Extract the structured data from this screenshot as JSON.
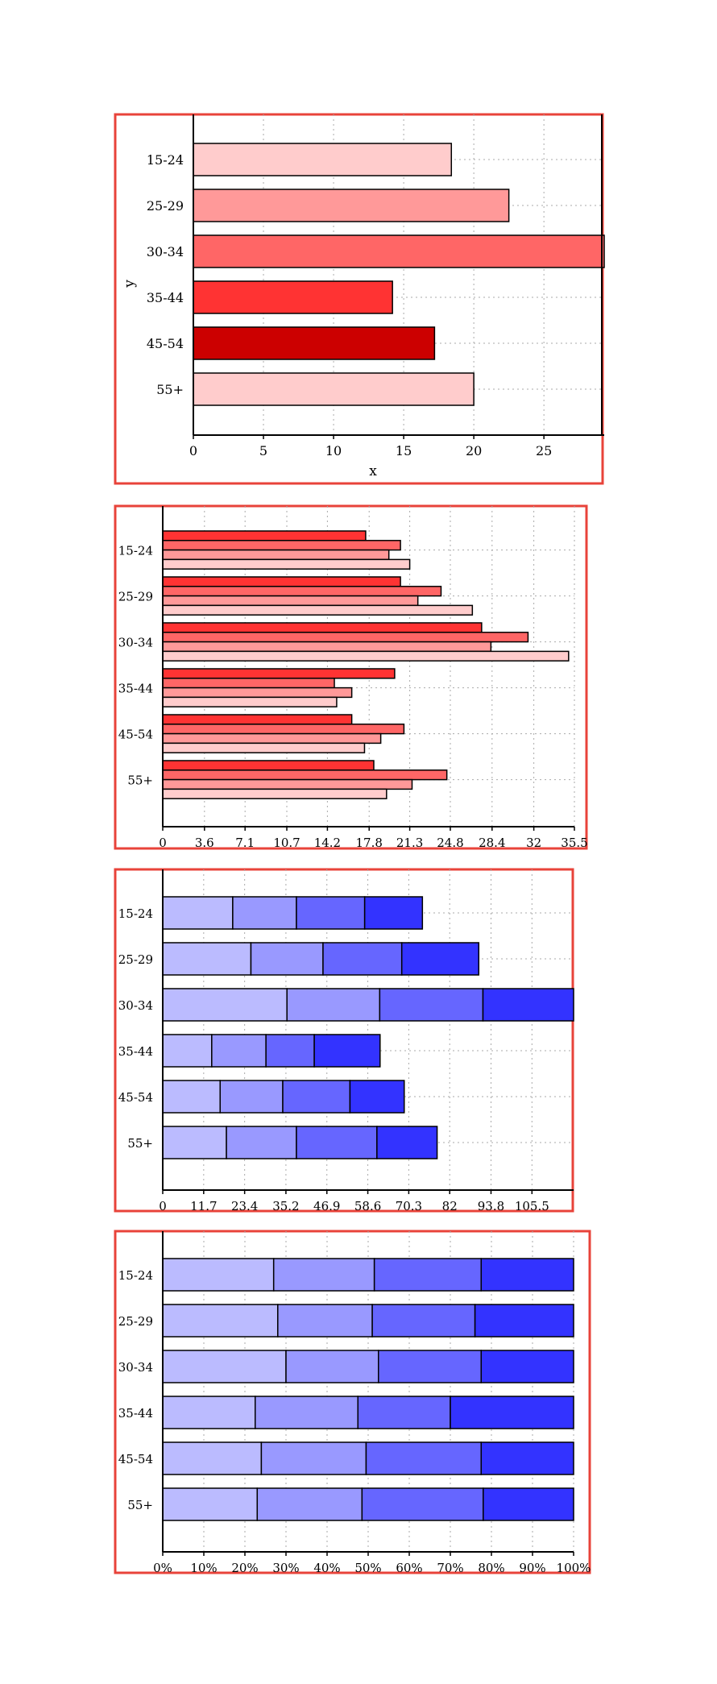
{
  "chart_data": [
    {
      "type": "bar",
      "orientation": "horizontal",
      "categories": [
        "15-24",
        "25-29",
        "30-34",
        "35-44",
        "45-54",
        "55+"
      ],
      "values": [
        18.4,
        22.5,
        29.3,
        14.2,
        17.2,
        20.0
      ],
      "colors": [
        "#ffcccc",
        "#ff9999",
        "#ff6666",
        "#ff3333",
        "#cc0000",
        "#ffcccc"
      ],
      "xlabel": "x",
      "ylabel": "y",
      "xlim": [
        0,
        29.3
      ],
      "xticks": [
        "0",
        "5",
        "10",
        "15",
        "20",
        "25"
      ],
      "grid": true
    },
    {
      "type": "bar",
      "orientation": "horizontal",
      "grouped": true,
      "categories": [
        "15-24",
        "25-29",
        "30-34",
        "35-44",
        "45-54",
        "55+"
      ],
      "series": [
        {
          "values": [
            17.5,
            20.5,
            27.5,
            20.0,
            16.3,
            18.2
          ],
          "color": "#ff3333"
        },
        {
          "values": [
            20.5,
            24.0,
            31.5,
            14.8,
            20.8,
            24.5
          ],
          "color": "#ff6666"
        },
        {
          "values": [
            19.5,
            22.0,
            28.3,
            16.3,
            18.8,
            21.5
          ],
          "color": "#ff9999"
        },
        {
          "values": [
            21.3,
            26.7,
            35.0,
            15.0,
            17.4,
            19.3
          ],
          "color": "#ffcccc"
        }
      ],
      "xlim": [
        0,
        35.5
      ],
      "xticks": [
        "0",
        "3.6",
        "7.1",
        "10.7",
        "14.2",
        "17.8",
        "21.3",
        "24.8",
        "28.4",
        "32",
        "35.5"
      ],
      "grid": true
    },
    {
      "type": "bar",
      "orientation": "horizontal",
      "stacked": true,
      "categories": [
        "15-24",
        "25-29",
        "30-34",
        "35-44",
        "45-54",
        "55+"
      ],
      "series": [
        {
          "values": [
            20.0,
            25.2,
            35.5,
            14.0,
            16.4,
            18.2
          ],
          "color": "#bbbbff"
        },
        {
          "values": [
            18.2,
            20.6,
            26.5,
            15.5,
            17.9,
            20.0
          ],
          "color": "#9999ff"
        },
        {
          "values": [
            19.5,
            22.5,
            29.5,
            13.8,
            19.2,
            23.0
          ],
          "color": "#6666ff"
        },
        {
          "values": [
            16.5,
            22.0,
            25.9,
            18.8,
            15.5,
            17.2
          ],
          "color": "#3333ff"
        }
      ],
      "xlim": [
        0,
        117.4
      ],
      "xticks": [
        "0",
        "11.7",
        "23.4",
        "35.2",
        "46.9",
        "58.6",
        "70.3",
        "82",
        "93.8",
        "105.5"
      ],
      "grid": true
    },
    {
      "type": "bar",
      "orientation": "horizontal",
      "stacked": true,
      "percent": true,
      "categories": [
        "15-24",
        "25-29",
        "30-34",
        "35-44",
        "45-54",
        "55+"
      ],
      "series": [
        {
          "values": [
            27,
            28,
            30,
            22.5,
            24,
            23
          ],
          "color": "#bbbbff"
        },
        {
          "values": [
            24.5,
            23,
            22.5,
            25,
            25.5,
            25.5
          ],
          "color": "#9999ff"
        },
        {
          "values": [
            26,
            25,
            25,
            22.5,
            28,
            29.5
          ],
          "color": "#6666ff"
        },
        {
          "values": [
            22.5,
            24,
            22.5,
            30,
            22.5,
            22
          ],
          "color": "#3333ff"
        }
      ],
      "xlim": [
        0,
        100
      ],
      "xticks": [
        "0%",
        "10%",
        "20%",
        "30%",
        "40%",
        "50%",
        "60%",
        "70%",
        "80%",
        "90%",
        "100%"
      ],
      "grid": true
    }
  ]
}
